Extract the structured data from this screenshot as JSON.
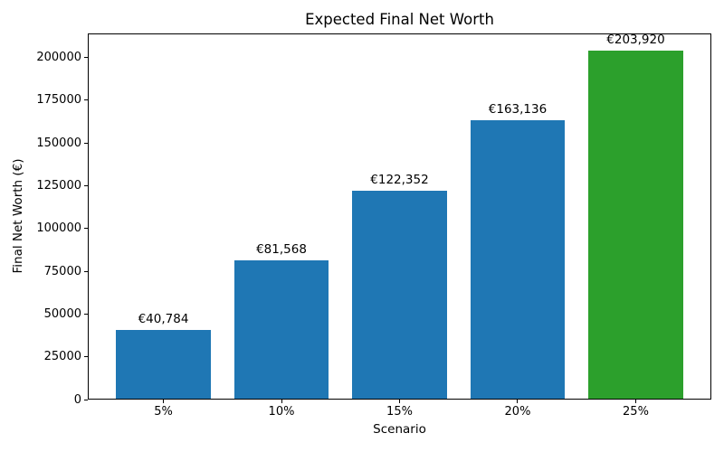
{
  "chart_data": {
    "type": "bar",
    "title": "Expected Final Net Worth",
    "xlabel": "Scenario",
    "ylabel": "Final Net Worth (€)",
    "categories": [
      "5%",
      "10%",
      "15%",
      "20%",
      "25%"
    ],
    "values": [
      40784,
      81568,
      122352,
      163136,
      203920
    ],
    "bar_labels": [
      "€40,784",
      "€81,568",
      "€122,352",
      "€163,136",
      "€203,920"
    ],
    "bar_colors": [
      "#1f77b4",
      "#1f77b4",
      "#1f77b4",
      "#1f77b4",
      "#2ca02c"
    ],
    "yticks": [
      0,
      25000,
      50000,
      75000,
      100000,
      125000,
      150000,
      175000,
      200000
    ],
    "ylim": [
      0,
      214116
    ],
    "bar_width_fraction": 0.8,
    "grid": false,
    "legend_position": "none",
    "spine_color": "#000000",
    "background_color": "#ffffff"
  }
}
